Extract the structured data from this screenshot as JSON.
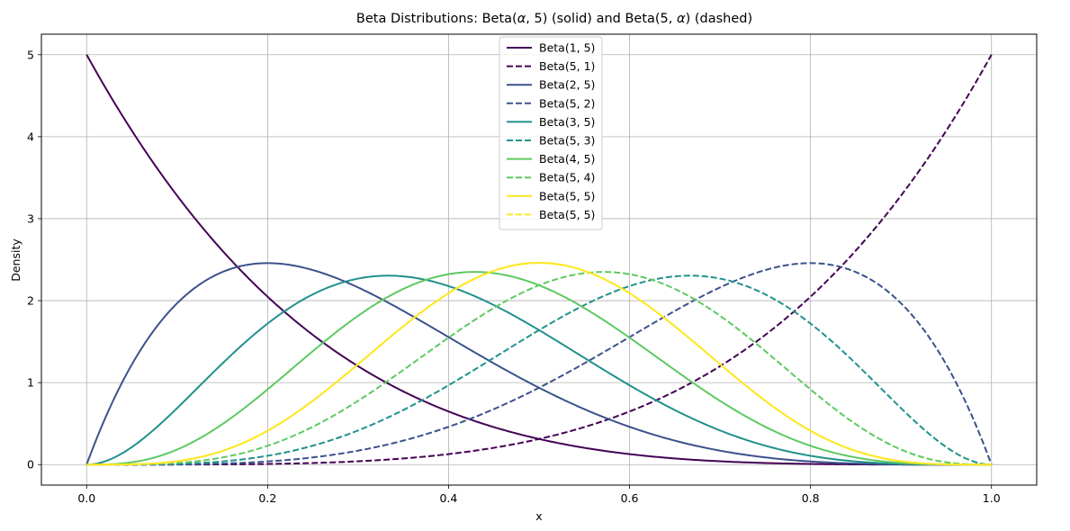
{
  "chart_data": {
    "type": "line",
    "title_parts": [
      "Beta Distributions: Beta(",
      "α",
      ", 5) (solid) and Beta(5, ",
      "α",
      ") (dashed)"
    ],
    "xlabel": "x",
    "ylabel": "Density",
    "xlim": [
      -0.05,
      1.05
    ],
    "ylim": [
      -0.25,
      5.25
    ],
    "xticks": [
      0.0,
      0.2,
      0.4,
      0.6,
      0.8,
      1.0
    ],
    "xtick_labels": [
      "0.0",
      "0.2",
      "0.4",
      "0.6",
      "0.8",
      "1.0"
    ],
    "yticks": [
      0,
      1,
      2,
      3,
      4,
      5
    ],
    "ytick_labels": [
      "0",
      "1",
      "2",
      "3",
      "4",
      "5"
    ],
    "grid": true,
    "legend_position": "top-center",
    "series": [
      {
        "name": "Beta(1, 5)",
        "a": 1,
        "b": 5,
        "style": "solid",
        "color": "#440154"
      },
      {
        "name": "Beta(5, 1)",
        "a": 5,
        "b": 1,
        "style": "dashed",
        "color": "#440154"
      },
      {
        "name": "Beta(2, 5)",
        "a": 2,
        "b": 5,
        "style": "solid",
        "color": "#3b528b"
      },
      {
        "name": "Beta(5, 2)",
        "a": 5,
        "b": 2,
        "style": "dashed",
        "color": "#3b528b"
      },
      {
        "name": "Beta(3, 5)",
        "a": 3,
        "b": 5,
        "style": "solid",
        "color": "#21918c"
      },
      {
        "name": "Beta(5, 3)",
        "a": 5,
        "b": 3,
        "style": "dashed",
        "color": "#21918c"
      },
      {
        "name": "Beta(4, 5)",
        "a": 4,
        "b": 5,
        "style": "solid",
        "color": "#5ec962"
      },
      {
        "name": "Beta(5, 4)",
        "a": 5,
        "b": 4,
        "style": "dashed",
        "color": "#5ec962"
      },
      {
        "name": "Beta(5, 5)",
        "a": 5,
        "b": 5,
        "style": "solid",
        "color": "#fde725"
      },
      {
        "name": "Beta(5, 5)",
        "a": 5,
        "b": 5,
        "style": "dashed",
        "color": "#fde725"
      }
    ]
  }
}
